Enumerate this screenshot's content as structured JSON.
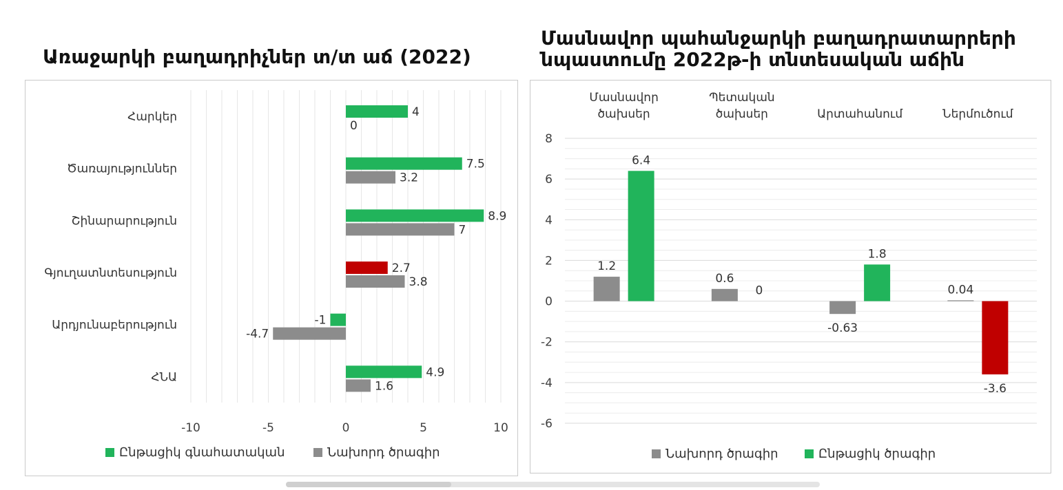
{
  "colors": {
    "green": "#21b45b",
    "grey": "#8c8c8c",
    "red": "#c00000"
  },
  "chart_data": [
    {
      "type": "bar",
      "orientation": "horizontal",
      "title": "Առաջարկի բաղադրիչներ տ/տ աճ (2022)",
      "categories": [
        "Հարկեր",
        "Ծառայություններ",
        "Շինարարություն",
        "Գյուղատնտեսություն",
        "Արդյունաբերություն",
        "ՀՆԱ"
      ],
      "series": [
        {
          "name": "Ընթացիկ գնահատական",
          "values": [
            4,
            7.5,
            8.9,
            2.7,
            -1,
            4.9
          ],
          "labels": [
            "4",
            "7.5",
            "8.9",
            "2.7",
            "-1",
            "4.9"
          ],
          "color": "#21b45b"
        },
        {
          "name": "Նախորդ ծրագիր",
          "values": [
            0,
            3.2,
            7,
            3.8,
            -4.7,
            1.6
          ],
          "labels": [
            "0",
            "3.2",
            "7",
            "3.8",
            "-4.7",
            "1.6"
          ],
          "color": "#8c8c8c"
        }
      ],
      "highlight": [
        {
          "series": 0,
          "category": "Գյուղատնտեսություն",
          "color": "#c00000"
        }
      ],
      "xlim": [
        -10,
        10
      ],
      "xticks": [
        -10,
        -5,
        0,
        5,
        10
      ],
      "xticklabels": [
        "-10",
        "-5",
        "0",
        "5",
        "10"
      ],
      "grid": "vertical",
      "legend": "bottom"
    },
    {
      "type": "bar",
      "title": "Մասնավոր պահանջարկի բաղադրատարրերի նպաստումը 2022թ-ի տնտեսական աճին",
      "categories": [
        "Մասնավոր ծախսեր",
        "Պետական ծախսեր",
        "Արտահանում",
        "Ներմուծում"
      ],
      "series": [
        {
          "name": "Նախորդ ծրագիր",
          "values": [
            1.2,
            0.6,
            -0.63,
            0.04
          ],
          "labels": [
            "1.2",
            "0.6",
            "-0.63",
            "0.04"
          ],
          "color": "#8c8c8c"
        },
        {
          "name": "Ընթացիկ ծրագիր",
          "values": [
            6.4,
            0,
            1.8,
            -3.6
          ],
          "labels": [
            "6.4",
            "0",
            "1.8",
            "-3.6"
          ],
          "color": "#21b45b"
        }
      ],
      "highlight": [
        {
          "series": 1,
          "category": "Ներմուծում",
          "color": "#c00000"
        }
      ],
      "ylim": [
        -6,
        8
      ],
      "yticks": [
        -6,
        -4,
        -2,
        0,
        2,
        4,
        6,
        8
      ],
      "yticklabels": [
        "-6",
        "-4",
        "-2",
        "0",
        "2",
        "4",
        "6",
        "8"
      ],
      "category_axis_position": "top",
      "grid": "horizontal",
      "legend": "bottom"
    }
  ]
}
